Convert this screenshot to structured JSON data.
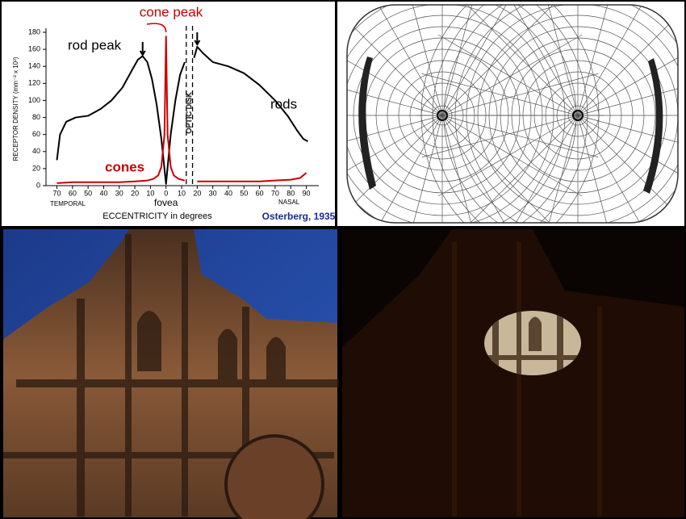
{
  "chart_data": {
    "type": "line",
    "y_label": "RECEPTOR DENSITY (mm⁻² x 10³)",
    "x_label": "ECCENTRICITY in degrees",
    "temporal_label": "TEMPORAL",
    "nasal_label": "NASAL",
    "fovea_label": "fovea",
    "optic_disk_label": "OPTIC DISK",
    "rod_peak_label": "rod peak",
    "cone_peak_label": "cone peak",
    "source": "Osterberg, 1935",
    "xlim": [
      -77,
      98
    ],
    "ylim": [
      0,
      180
    ],
    "xticks": [
      {
        "value": -70,
        "label": "70"
      },
      {
        "value": -60,
        "label": "60"
      },
      {
        "value": -50,
        "label": "50"
      },
      {
        "value": -40,
        "label": "40"
      },
      {
        "value": -30,
        "label": "30"
      },
      {
        "value": -20,
        "label": "20"
      },
      {
        "value": -10,
        "label": "10"
      },
      0,
      10,
      20,
      30,
      40,
      50,
      60,
      70,
      80,
      90
    ],
    "yticks": [
      0,
      20,
      40,
      60,
      80,
      100,
      120,
      140,
      160,
      180
    ],
    "optic_disk": [
      13,
      17
    ],
    "series": [
      {
        "name": "rods",
        "color": "#000000",
        "x": [
          -70,
          -68,
          -64,
          -58,
          -50,
          -42,
          -35,
          -28,
          -22,
          -18,
          -15,
          -12,
          -9,
          -6,
          -3,
          0,
          3,
          6,
          9,
          12,
          13,
          17,
          18,
          20,
          24,
          30,
          40,
          50,
          60,
          70,
          78,
          84,
          88,
          91
        ],
        "values": [
          30,
          60,
          75,
          80,
          82,
          90,
          100,
          115,
          135,
          148,
          152,
          145,
          125,
          95,
          55,
          2,
          60,
          100,
          130,
          145,
          null,
          null,
          150,
          163,
          155,
          145,
          140,
          132,
          118,
          100,
          82,
          65,
          55,
          52
        ]
      },
      {
        "name": "cones",
        "color": "#cc0000",
        "x": [
          -70,
          -60,
          -50,
          -40,
          -30,
          -20,
          -12,
          -8,
          -5,
          -3,
          -1,
          0,
          1,
          3,
          5,
          8,
          12,
          13,
          17,
          20,
          30,
          40,
          50,
          60,
          70,
          80,
          86,
          90
        ],
        "values": [
          3,
          4,
          4,
          4,
          4,
          5,
          6,
          8,
          12,
          22,
          60,
          175,
          60,
          22,
          12,
          8,
          6,
          null,
          null,
          5,
          5,
          5,
          5,
          5,
          6,
          7,
          9,
          15
        ]
      }
    ]
  }
}
